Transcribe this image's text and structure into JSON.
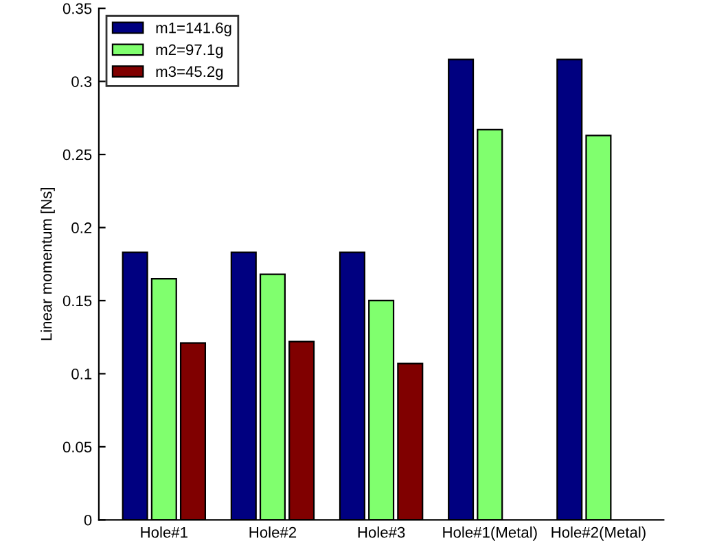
{
  "chart_data": {
    "type": "bar",
    "ylabel": "Linear momentum [Ns]",
    "categories": [
      "Hole#1",
      "Hole#2",
      "Hole#3",
      "Hole#1(Metal)",
      "Hole#2(Metal)"
    ],
    "series": [
      {
        "name": "m1=141.6g",
        "color": "#000080",
        "values": [
          0.183,
          0.183,
          0.183,
          0.315,
          0.315
        ]
      },
      {
        "name": "m2=97.1g",
        "color": "#80ff6e",
        "values": [
          0.165,
          0.168,
          0.15,
          0.267,
          0.263
        ]
      },
      {
        "name": "m3=45.2g",
        "color": "#800000",
        "values": [
          0.121,
          0.122,
          0.107,
          null,
          null
        ]
      }
    ],
    "ylim": [
      0,
      0.35
    ],
    "yticks": [
      0,
      0.05,
      0.1,
      0.15,
      0.2,
      0.25,
      0.3,
      0.35
    ],
    "grid": false,
    "legend": "top left"
  }
}
